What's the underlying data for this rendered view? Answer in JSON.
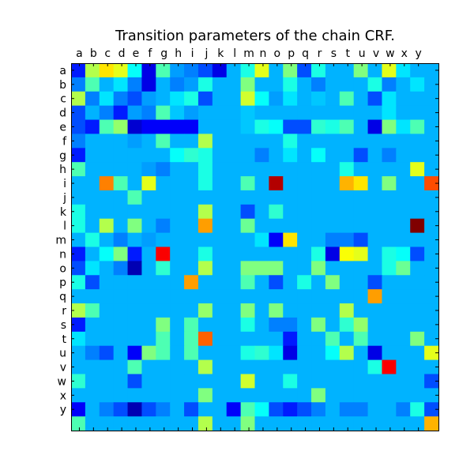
{
  "chart_data": {
    "type": "heatmap",
    "title": "Transition parameters of the chain CRF.",
    "xlabel": "",
    "ylabel": "",
    "x_tick_labels": [
      "a",
      "b",
      "c",
      "d",
      "e",
      "f",
      "g",
      "h",
      "i",
      "j",
      "k",
      "l",
      "m",
      "n",
      "o",
      "p",
      "q",
      "r",
      "s",
      "t",
      "u",
      "v",
      "w",
      "x",
      "y"
    ],
    "y_tick_labels": [
      "a",
      "b",
      "c",
      "d",
      "e",
      "f",
      "g",
      "h",
      "i",
      "j",
      "k",
      "l",
      "m",
      "n",
      "o",
      "p",
      "q",
      "r",
      "s",
      "t",
      "u",
      "v",
      "w",
      "x",
      "y"
    ],
    "rows": [
      "a",
      "b",
      "c",
      "d",
      "e",
      "f",
      "g",
      "h",
      "i",
      "j",
      "k",
      "l",
      "m",
      "n",
      "o",
      "p",
      "q",
      "r",
      "s",
      "t",
      "u",
      "v",
      "w",
      "x",
      "y",
      ""
    ],
    "cols": [
      "",
      "a",
      "b",
      "c",
      "d",
      "e",
      "f",
      "g",
      "h",
      "i",
      "j",
      "k",
      "l",
      "m",
      "n",
      "o",
      "p",
      "q",
      "r",
      "s",
      "t",
      "u",
      "v",
      "w",
      "x",
      "y"
    ],
    "colormap": "jet",
    "value_range": [
      0,
      1
    ],
    "values": [
      [
        0.15,
        0.55,
        0.65,
        0.6,
        0.38,
        0.1,
        0.45,
        0.28,
        0.25,
        0.2,
        0.1,
        0.3,
        0.4,
        0.6,
        0.3,
        0.5,
        0.2,
        0.4,
        0.3,
        0.3,
        0.5,
        0.3,
        0.6,
        0.35,
        0.3,
        0.3
      ],
      [
        0.25,
        0.45,
        0.3,
        0.35,
        0.25,
        0.1,
        0.3,
        0.25,
        0.28,
        0.4,
        0.3,
        0.3,
        0.5,
        0.3,
        0.3,
        0.4,
        0.3,
        0.25,
        0.3,
        0.3,
        0.3,
        0.4,
        0.25,
        0.3,
        0.35,
        0.3
      ],
      [
        0.55,
        0.25,
        0.35,
        0.25,
        0.2,
        0.28,
        0.3,
        0.35,
        0.4,
        0.2,
        0.3,
        0.3,
        0.58,
        0.38,
        0.28,
        0.35,
        0.3,
        0.32,
        0.3,
        0.45,
        0.3,
        0.2,
        0.35,
        0.3,
        0.3,
        0.3
      ],
      [
        0.2,
        0.3,
        0.25,
        0.15,
        0.28,
        0.25,
        0.45,
        0.32,
        0.28,
        0.3,
        0.3,
        0.3,
        0.32,
        0.3,
        0.3,
        0.3,
        0.3,
        0.3,
        0.3,
        0.3,
        0.3,
        0.3,
        0.35,
        0.3,
        0.3,
        0.3
      ],
      [
        0.2,
        0.15,
        0.45,
        0.52,
        0.08,
        0.12,
        0.12,
        0.12,
        0.12,
        0.3,
        0.3,
        0.3,
        0.32,
        0.4,
        0.38,
        0.2,
        0.2,
        0.42,
        0.4,
        0.45,
        0.3,
        0.1,
        0.5,
        0.35,
        0.45,
        0.3
      ],
      [
        0.25,
        0.3,
        0.3,
        0.3,
        0.28,
        0.3,
        0.45,
        0.3,
        0.3,
        0.55,
        0.3,
        0.3,
        0.3,
        0.3,
        0.3,
        0.4,
        0.3,
        0.3,
        0.3,
        0.3,
        0.3,
        0.3,
        0.3,
        0.3,
        0.3,
        0.3
      ],
      [
        0.15,
        0.3,
        0.3,
        0.3,
        0.3,
        0.3,
        0.3,
        0.38,
        0.42,
        0.4,
        0.3,
        0.3,
        0.3,
        0.25,
        0.3,
        0.35,
        0.3,
        0.38,
        0.3,
        0.3,
        0.2,
        0.3,
        0.25,
        0.3,
        0.3,
        0.3
      ],
      [
        0.45,
        0.3,
        0.3,
        0.3,
        0.3,
        0.28,
        0.25,
        0.3,
        0.3,
        0.4,
        0.3,
        0.3,
        0.3,
        0.3,
        0.3,
        0.3,
        0.3,
        0.3,
        0.3,
        0.4,
        0.3,
        0.3,
        0.3,
        0.3,
        0.6,
        0.3
      ],
      [
        0.3,
        0.3,
        0.75,
        0.45,
        0.3,
        0.6,
        0.3,
        0.3,
        0.3,
        0.4,
        0.3,
        0.3,
        0.45,
        0.3,
        0.95,
        0.3,
        0.3,
        0.3,
        0.3,
        0.7,
        0.65,
        0.3,
        0.5,
        0.3,
        0.3,
        0.8
      ],
      [
        0.3,
        0.3,
        0.3,
        0.3,
        0.45,
        0.3,
        0.3,
        0.3,
        0.3,
        0.3,
        0.3,
        0.3,
        0.3,
        0.3,
        0.3,
        0.3,
        0.3,
        0.3,
        0.3,
        0.3,
        0.3,
        0.3,
        0.3,
        0.3,
        0.3,
        0.3
      ],
      [
        0.4,
        0.3,
        0.3,
        0.3,
        0.3,
        0.3,
        0.3,
        0.3,
        0.3,
        0.55,
        0.3,
        0.3,
        0.2,
        0.3,
        0.42,
        0.3,
        0.3,
        0.3,
        0.3,
        0.3,
        0.3,
        0.3,
        0.3,
        0.3,
        0.3,
        0.3
      ],
      [
        0.4,
        0.3,
        0.55,
        0.3,
        0.5,
        0.3,
        0.25,
        0.3,
        0.3,
        0.72,
        0.3,
        0.3,
        0.48,
        0.3,
        0.3,
        0.3,
        0.3,
        0.3,
        0.3,
        0.3,
        0.3,
        0.3,
        0.3,
        0.3,
        1.0,
        0.3
      ],
      [
        0.3,
        0.4,
        0.3,
        0.25,
        0.3,
        0.28,
        0.3,
        0.3,
        0.3,
        0.3,
        0.3,
        0.3,
        0.3,
        0.35,
        0.12,
        0.65,
        0.3,
        0.3,
        0.25,
        0.25,
        0.2,
        0.3,
        0.3,
        0.3,
        0.3,
        0.3
      ],
      [
        0.15,
        0.3,
        0.38,
        0.5,
        0.15,
        0.3,
        0.88,
        0.3,
        0.3,
        0.4,
        0.3,
        0.3,
        0.3,
        0.3,
        0.3,
        0.3,
        0.3,
        0.4,
        0.1,
        0.62,
        0.6,
        0.3,
        0.4,
        0.38,
        0.2,
        0.3
      ],
      [
        0.2,
        0.35,
        0.3,
        0.25,
        0.05,
        0.3,
        0.42,
        0.3,
        0.3,
        0.55,
        0.3,
        0.3,
        0.5,
        0.5,
        0.5,
        0.3,
        0.3,
        0.5,
        0.3,
        0.3,
        0.3,
        0.3,
        0.4,
        0.48,
        0.3,
        0.3
      ],
      [
        0.4,
        0.2,
        0.3,
        0.3,
        0.3,
        0.3,
        0.3,
        0.3,
        0.72,
        0.3,
        0.3,
        0.3,
        0.45,
        0.3,
        0.2,
        0.3,
        0.4,
        0.3,
        0.5,
        0.3,
        0.3,
        0.2,
        0.3,
        0.3,
        0.3,
        0.3
      ],
      [
        0.3,
        0.3,
        0.3,
        0.3,
        0.3,
        0.3,
        0.3,
        0.3,
        0.3,
        0.3,
        0.3,
        0.3,
        0.3,
        0.3,
        0.3,
        0.3,
        0.3,
        0.3,
        0.3,
        0.3,
        0.3,
        0.72,
        0.3,
        0.3,
        0.3,
        0.3
      ],
      [
        0.55,
        0.45,
        0.3,
        0.3,
        0.3,
        0.3,
        0.3,
        0.3,
        0.3,
        0.52,
        0.3,
        0.3,
        0.5,
        0.3,
        0.5,
        0.3,
        0.3,
        0.3,
        0.3,
        0.55,
        0.3,
        0.3,
        0.3,
        0.3,
        0.3,
        0.3
      ],
      [
        0.15,
        0.3,
        0.3,
        0.3,
        0.3,
        0.3,
        0.5,
        0.3,
        0.45,
        0.3,
        0.3,
        0.3,
        0.4,
        0.3,
        0.25,
        0.25,
        0.3,
        0.5,
        0.3,
        0.42,
        0.52,
        0.3,
        0.3,
        0.3,
        0.3,
        0.3
      ],
      [
        0.35,
        0.3,
        0.3,
        0.3,
        0.3,
        0.3,
        0.45,
        0.3,
        0.45,
        0.78,
        0.3,
        0.3,
        0.3,
        0.3,
        0.3,
        0.15,
        0.3,
        0.3,
        0.45,
        0.3,
        0.45,
        0.3,
        0.3,
        0.3,
        0.5,
        0.3
      ],
      [
        0.3,
        0.25,
        0.2,
        0.3,
        0.12,
        0.5,
        0.45,
        0.3,
        0.45,
        0.3,
        0.3,
        0.3,
        0.4,
        0.42,
        0.35,
        0.1,
        0.3,
        0.3,
        0.38,
        0.55,
        0.3,
        0.1,
        0.3,
        0.3,
        0.3,
        0.6
      ],
      [
        0.3,
        0.3,
        0.3,
        0.3,
        0.45,
        0.3,
        0.3,
        0.3,
        0.3,
        0.55,
        0.3,
        0.3,
        0.3,
        0.3,
        0.3,
        0.3,
        0.3,
        0.3,
        0.3,
        0.3,
        0.3,
        0.4,
        0.88,
        0.3,
        0.3,
        0.3
      ],
      [
        0.42,
        0.3,
        0.3,
        0.3,
        0.2,
        0.3,
        0.3,
        0.3,
        0.3,
        0.3,
        0.3,
        0.3,
        0.58,
        0.3,
        0.3,
        0.4,
        0.3,
        0.3,
        0.3,
        0.3,
        0.3,
        0.3,
        0.3,
        0.3,
        0.3,
        0.2
      ],
      [
        0.3,
        0.3,
        0.3,
        0.3,
        0.3,
        0.3,
        0.3,
        0.3,
        0.3,
        0.5,
        0.3,
        0.3,
        0.3,
        0.3,
        0.3,
        0.3,
        0.3,
        0.5,
        0.3,
        0.3,
        0.3,
        0.3,
        0.3,
        0.3,
        0.3,
        0.3
      ],
      [
        0.12,
        0.3,
        0.25,
        0.2,
        0.05,
        0.2,
        0.25,
        0.3,
        0.2,
        0.3,
        0.3,
        0.12,
        0.45,
        0.38,
        0.2,
        0.15,
        0.2,
        0.25,
        0.3,
        0.25,
        0.25,
        0.3,
        0.3,
        0.25,
        0.4,
        0.2
      ],
      [
        0.45,
        0.3,
        0.3,
        0.3,
        0.3,
        0.3,
        0.3,
        0.3,
        0.3,
        0.55,
        0.3,
        0.3,
        0.5,
        0.3,
        0.3,
        0.3,
        0.3,
        0.3,
        0.3,
        0.3,
        0.3,
        0.3,
        0.3,
        0.3,
        0.3,
        0.7
      ]
    ]
  }
}
